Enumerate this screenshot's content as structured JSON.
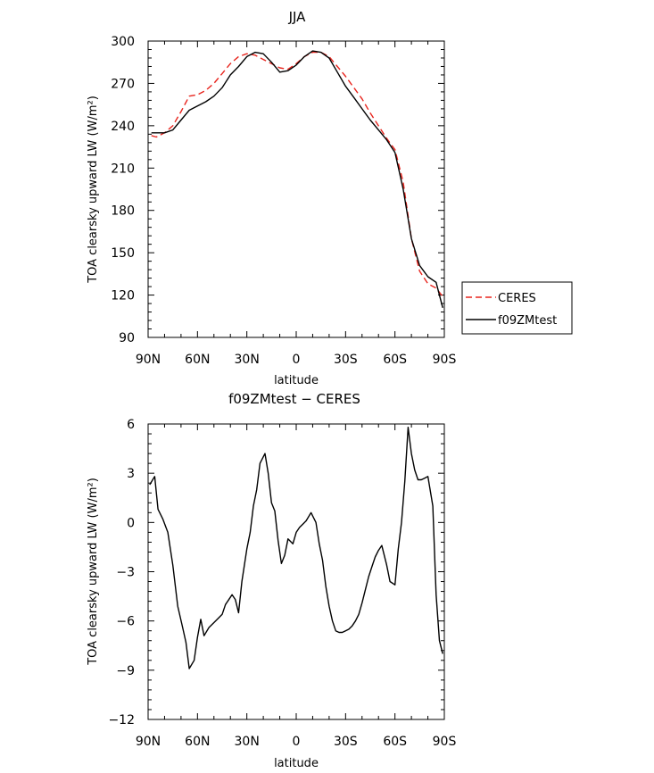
{
  "chart_data": [
    {
      "type": "line",
      "title": "JJA",
      "xlabel": "latitude",
      "ylabel": "TOA clearsky upward LW (W/m²)",
      "xlim": [
        90,
        -90
      ],
      "ylim": [
        90,
        300
      ],
      "x_ticks": [
        90,
        60,
        30,
        0,
        -30,
        -60,
        -90
      ],
      "x_tick_labels": [
        "90N",
        "60N",
        "30N",
        "0",
        "30S",
        "60S",
        "90S"
      ],
      "y_ticks": [
        90,
        120,
        150,
        180,
        210,
        240,
        270,
        300
      ],
      "legend": "right-bottom",
      "series": [
        {
          "name": "CERES",
          "color": "#e8251e",
          "dash": "dashed",
          "x": [
            88,
            85,
            80,
            75,
            70,
            65,
            60,
            55,
            50,
            45,
            40,
            35,
            30,
            25,
            20,
            15,
            10,
            5,
            0,
            -5,
            -10,
            -15,
            -20,
            -25,
            -30,
            -35,
            -40,
            -45,
            -50,
            -55,
            -60,
            -65,
            -70,
            -75,
            -80,
            -85,
            -89
          ],
          "y": [
            233,
            232,
            235,
            240,
            250,
            261,
            262,
            265,
            270,
            277,
            284,
            289,
            291,
            290,
            287,
            284,
            281,
            280,
            284,
            289,
            292,
            292,
            289,
            282,
            275,
            267,
            259,
            249,
            240,
            231,
            223,
            200,
            160,
            137,
            128,
            125,
            119
          ]
        },
        {
          "name": "f09ZMtest",
          "color": "#000000",
          "dash": "solid",
          "x": [
            88,
            85,
            80,
            75,
            70,
            65,
            60,
            55,
            50,
            45,
            40,
            35,
            30,
            25,
            20,
            15,
            10,
            5,
            0,
            -5,
            -10,
            -15,
            -20,
            -25,
            -30,
            -35,
            -40,
            -45,
            -50,
            -55,
            -60,
            -65,
            -70,
            -75,
            -80,
            -85,
            -89
          ],
          "y": [
            235,
            235,
            235,
            237,
            244,
            251,
            254,
            257,
            261,
            267,
            276,
            282,
            289,
            292,
            291,
            285,
            278,
            279,
            283,
            289,
            293,
            292,
            288,
            278,
            268,
            260,
            252,
            244,
            237,
            230,
            221,
            195,
            160,
            141,
            133,
            129,
            111
          ]
        }
      ]
    },
    {
      "type": "line",
      "title": "f09ZMtest − CERES",
      "xlabel": "latitude",
      "ylabel": "TOA clearsky upward LW (W/m²)",
      "xlim": [
        90,
        -90
      ],
      "ylim": [
        -12,
        6
      ],
      "x_ticks": [
        90,
        60,
        30,
        0,
        -30,
        -60,
        -90
      ],
      "x_tick_labels": [
        "90N",
        "60N",
        "30N",
        "0",
        "30S",
        "60S",
        "90S"
      ],
      "y_ticks": [
        -12,
        -9,
        -6,
        -3,
        0,
        3,
        6
      ],
      "y_tick_labels": [
        "−12",
        "−9",
        "−6",
        "−3",
        "0",
        "3",
        "6"
      ],
      "series": [
        {
          "color": "#000000",
          "x": [
            89,
            86,
            84,
            81,
            78,
            75,
            72,
            69,
            67,
            65,
            62,
            60,
            58,
            56,
            53,
            50,
            47,
            45,
            43,
            41,
            39,
            37,
            35,
            33,
            30,
            28,
            26,
            24,
            22,
            19,
            17,
            15,
            13,
            11,
            9,
            7,
            5,
            2,
            0,
            -2,
            -4,
            -6,
            -9,
            -12,
            -14,
            -16,
            -18,
            -20,
            -22,
            -24,
            -26,
            -28,
            -30,
            -32,
            -34,
            -36,
            -38,
            -40,
            -42,
            -44,
            -46,
            -48,
            -50,
            -52,
            -55,
            -57,
            -60,
            -62,
            -64,
            -66,
            -68,
            -70,
            -72,
            -74,
            -76,
            -78,
            -80,
            -83,
            -85,
            -87,
            -89
          ],
          "y": [
            2.3,
            2.8,
            0.8,
            0.2,
            -0.6,
            -2.6,
            -5.1,
            -6.4,
            -7.3,
            -8.9,
            -8.4,
            -7.0,
            -5.9,
            -6.9,
            -6.4,
            -6.1,
            -5.8,
            -5.6,
            -5.0,
            -4.7,
            -4.4,
            -4.7,
            -5.5,
            -3.6,
            -1.6,
            -0.6,
            1.0,
            2.0,
            3.6,
            4.2,
            3.0,
            1.2,
            0.7,
            -1.1,
            -2.5,
            -2.0,
            -1.0,
            -1.3,
            -0.6,
            -0.3,
            -0.1,
            0.1,
            0.6,
            0.0,
            -1.3,
            -2.3,
            -3.9,
            -5.1,
            -6.0,
            -6.6,
            -6.7,
            -6.7,
            -6.6,
            -6.5,
            -6.3,
            -6.0,
            -5.6,
            -4.9,
            -4.1,
            -3.3,
            -2.7,
            -2.1,
            -1.7,
            -1.4,
            -2.6,
            -3.6,
            -3.8,
            -1.6,
            0.0,
            2.5,
            5.8,
            4.2,
            3.2,
            2.6,
            2.6,
            2.7,
            2.8,
            1.0,
            -4.4,
            -7.2,
            -8.0
          ]
        }
      ]
    }
  ]
}
